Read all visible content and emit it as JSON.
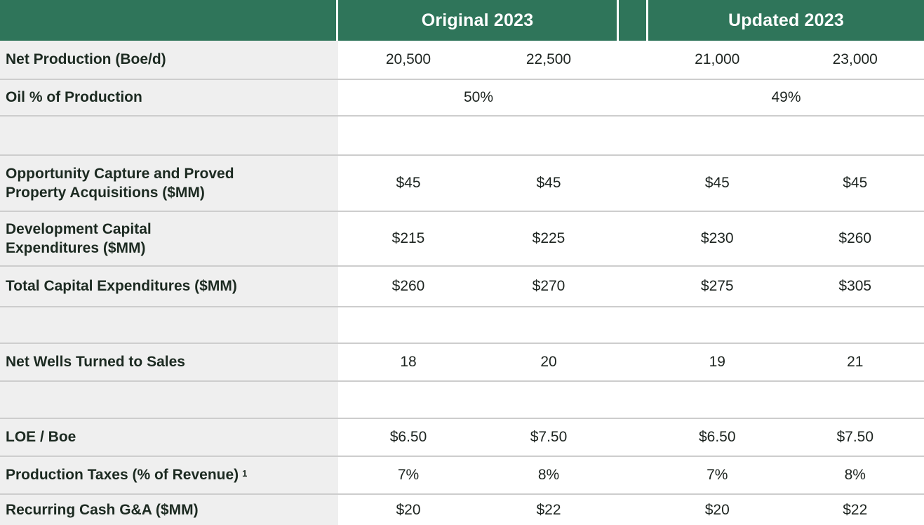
{
  "header": {
    "original_label": "Original 2023",
    "updated_label": "Updated 2023"
  },
  "rows": [
    {
      "label": "Net Production (Boe/d)",
      "values": [
        "20,500",
        "22,500",
        "21,000",
        "23,000"
      ]
    },
    {
      "label": "Oil % of Production",
      "span_values": [
        "50%",
        "49%"
      ]
    },
    {
      "label": ""
    },
    {
      "label": "Opportunity Capture and Proved\nProperty Acquisitions ($MM)",
      "values": [
        "$45",
        "$45",
        "$45",
        "$45"
      ]
    },
    {
      "label": "Development Capital\nExpenditures ($MM)",
      "values": [
        "$215",
        "$225",
        "$230",
        "$260"
      ]
    },
    {
      "label": "Total Capital Expenditures ($MM)",
      "values": [
        "$260",
        "$270",
        "$275",
        "$305"
      ]
    },
    {
      "label": ""
    },
    {
      "label": "Net Wells Turned to Sales",
      "values": [
        "18",
        "20",
        "19",
        "21"
      ]
    },
    {
      "label": ""
    },
    {
      "label": "LOE / Boe",
      "values": [
        "$6.50",
        "$7.50",
        "$6.50",
        "$7.50"
      ]
    },
    {
      "label": "Production Taxes (% of Revenue)",
      "label_sup": "1",
      "values": [
        "7%",
        "8%",
        "7%",
        "8%"
      ]
    },
    {
      "label": "Recurring Cash G&A ($MM)",
      "values": [
        "$20",
        "$22",
        "$20",
        "$22"
      ]
    }
  ],
  "colors": {
    "header_green": "#2F755A",
    "label_column_bg": "#EFEFEF",
    "row_border": "#CDCDCD",
    "header_text": "#FFFFFF",
    "label_text": "#1C2A21",
    "value_text": "#1D2420"
  }
}
